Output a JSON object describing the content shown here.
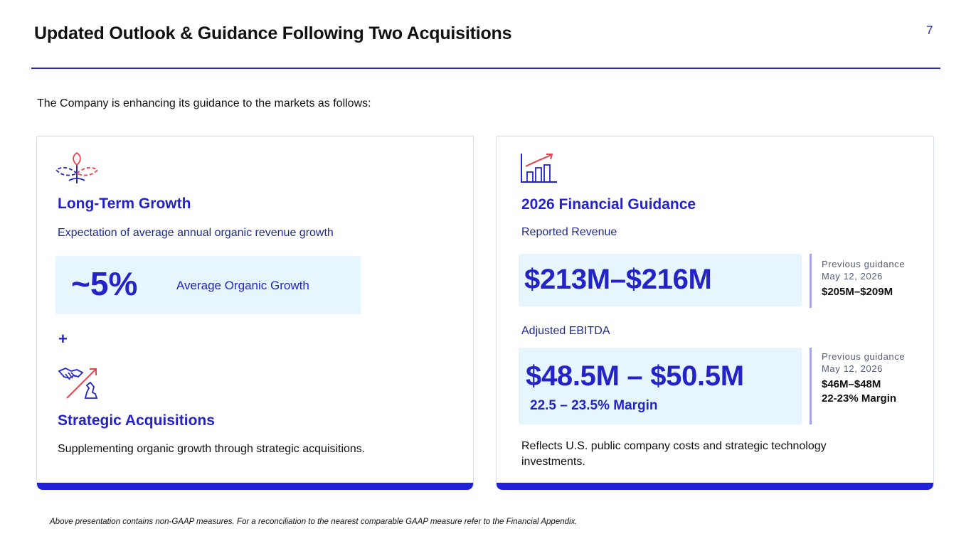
{
  "page": {
    "title": "Updated Outlook & Guidance Following Two Acquisitions",
    "page_number": "7",
    "intro": "The Company is enhancing its guidance to the markets as follows:",
    "footnote": "Above presentation contains non-GAAP measures. For a reconciliation to the nearest comparable GAAP measure refer to the Financial Appendix."
  },
  "left_card": {
    "growth_icon": "sprout-icon",
    "growth_heading": "Long-Term Growth",
    "growth_subtext": "Expectation of average annual organic revenue growth",
    "growth_value": "~5%",
    "growth_caption": "Average Organic Growth",
    "plus": "+",
    "acq_icon": "handshake-chess-icon",
    "acq_heading": "Strategic Acquisitions",
    "acq_text": "Supplementing organic growth through strategic acquisitions."
  },
  "right_card": {
    "chart_icon": "bar-chart-up-icon",
    "heading": "2026 Financial Guidance",
    "revenue_label": "Reported Revenue",
    "revenue_range": "$213M–$216M",
    "revenue_prev_label": "Previous guidance",
    "revenue_prev_date": "May 12, 2026",
    "revenue_prev_value": "$205M–$209M",
    "ebitda_label": "Adjusted EBITDA",
    "ebitda_range": "$48.5M – $50.5M",
    "ebitda_margin": "22.5 – 23.5% Margin",
    "ebitda_prev_label": "Previous guidance",
    "ebitda_prev_date": "May 12, 2026",
    "ebitda_prev_value": "$46M–$48M",
    "ebitda_prev_margin": "22-23% Margin",
    "note": "Reflects U.S. public company costs and strategic technology investments."
  },
  "colors": {
    "accent": "#2323c8",
    "bar": "#2020d6",
    "highlight_bg": "#e6f6fc",
    "icon_red": "#e8424e"
  }
}
